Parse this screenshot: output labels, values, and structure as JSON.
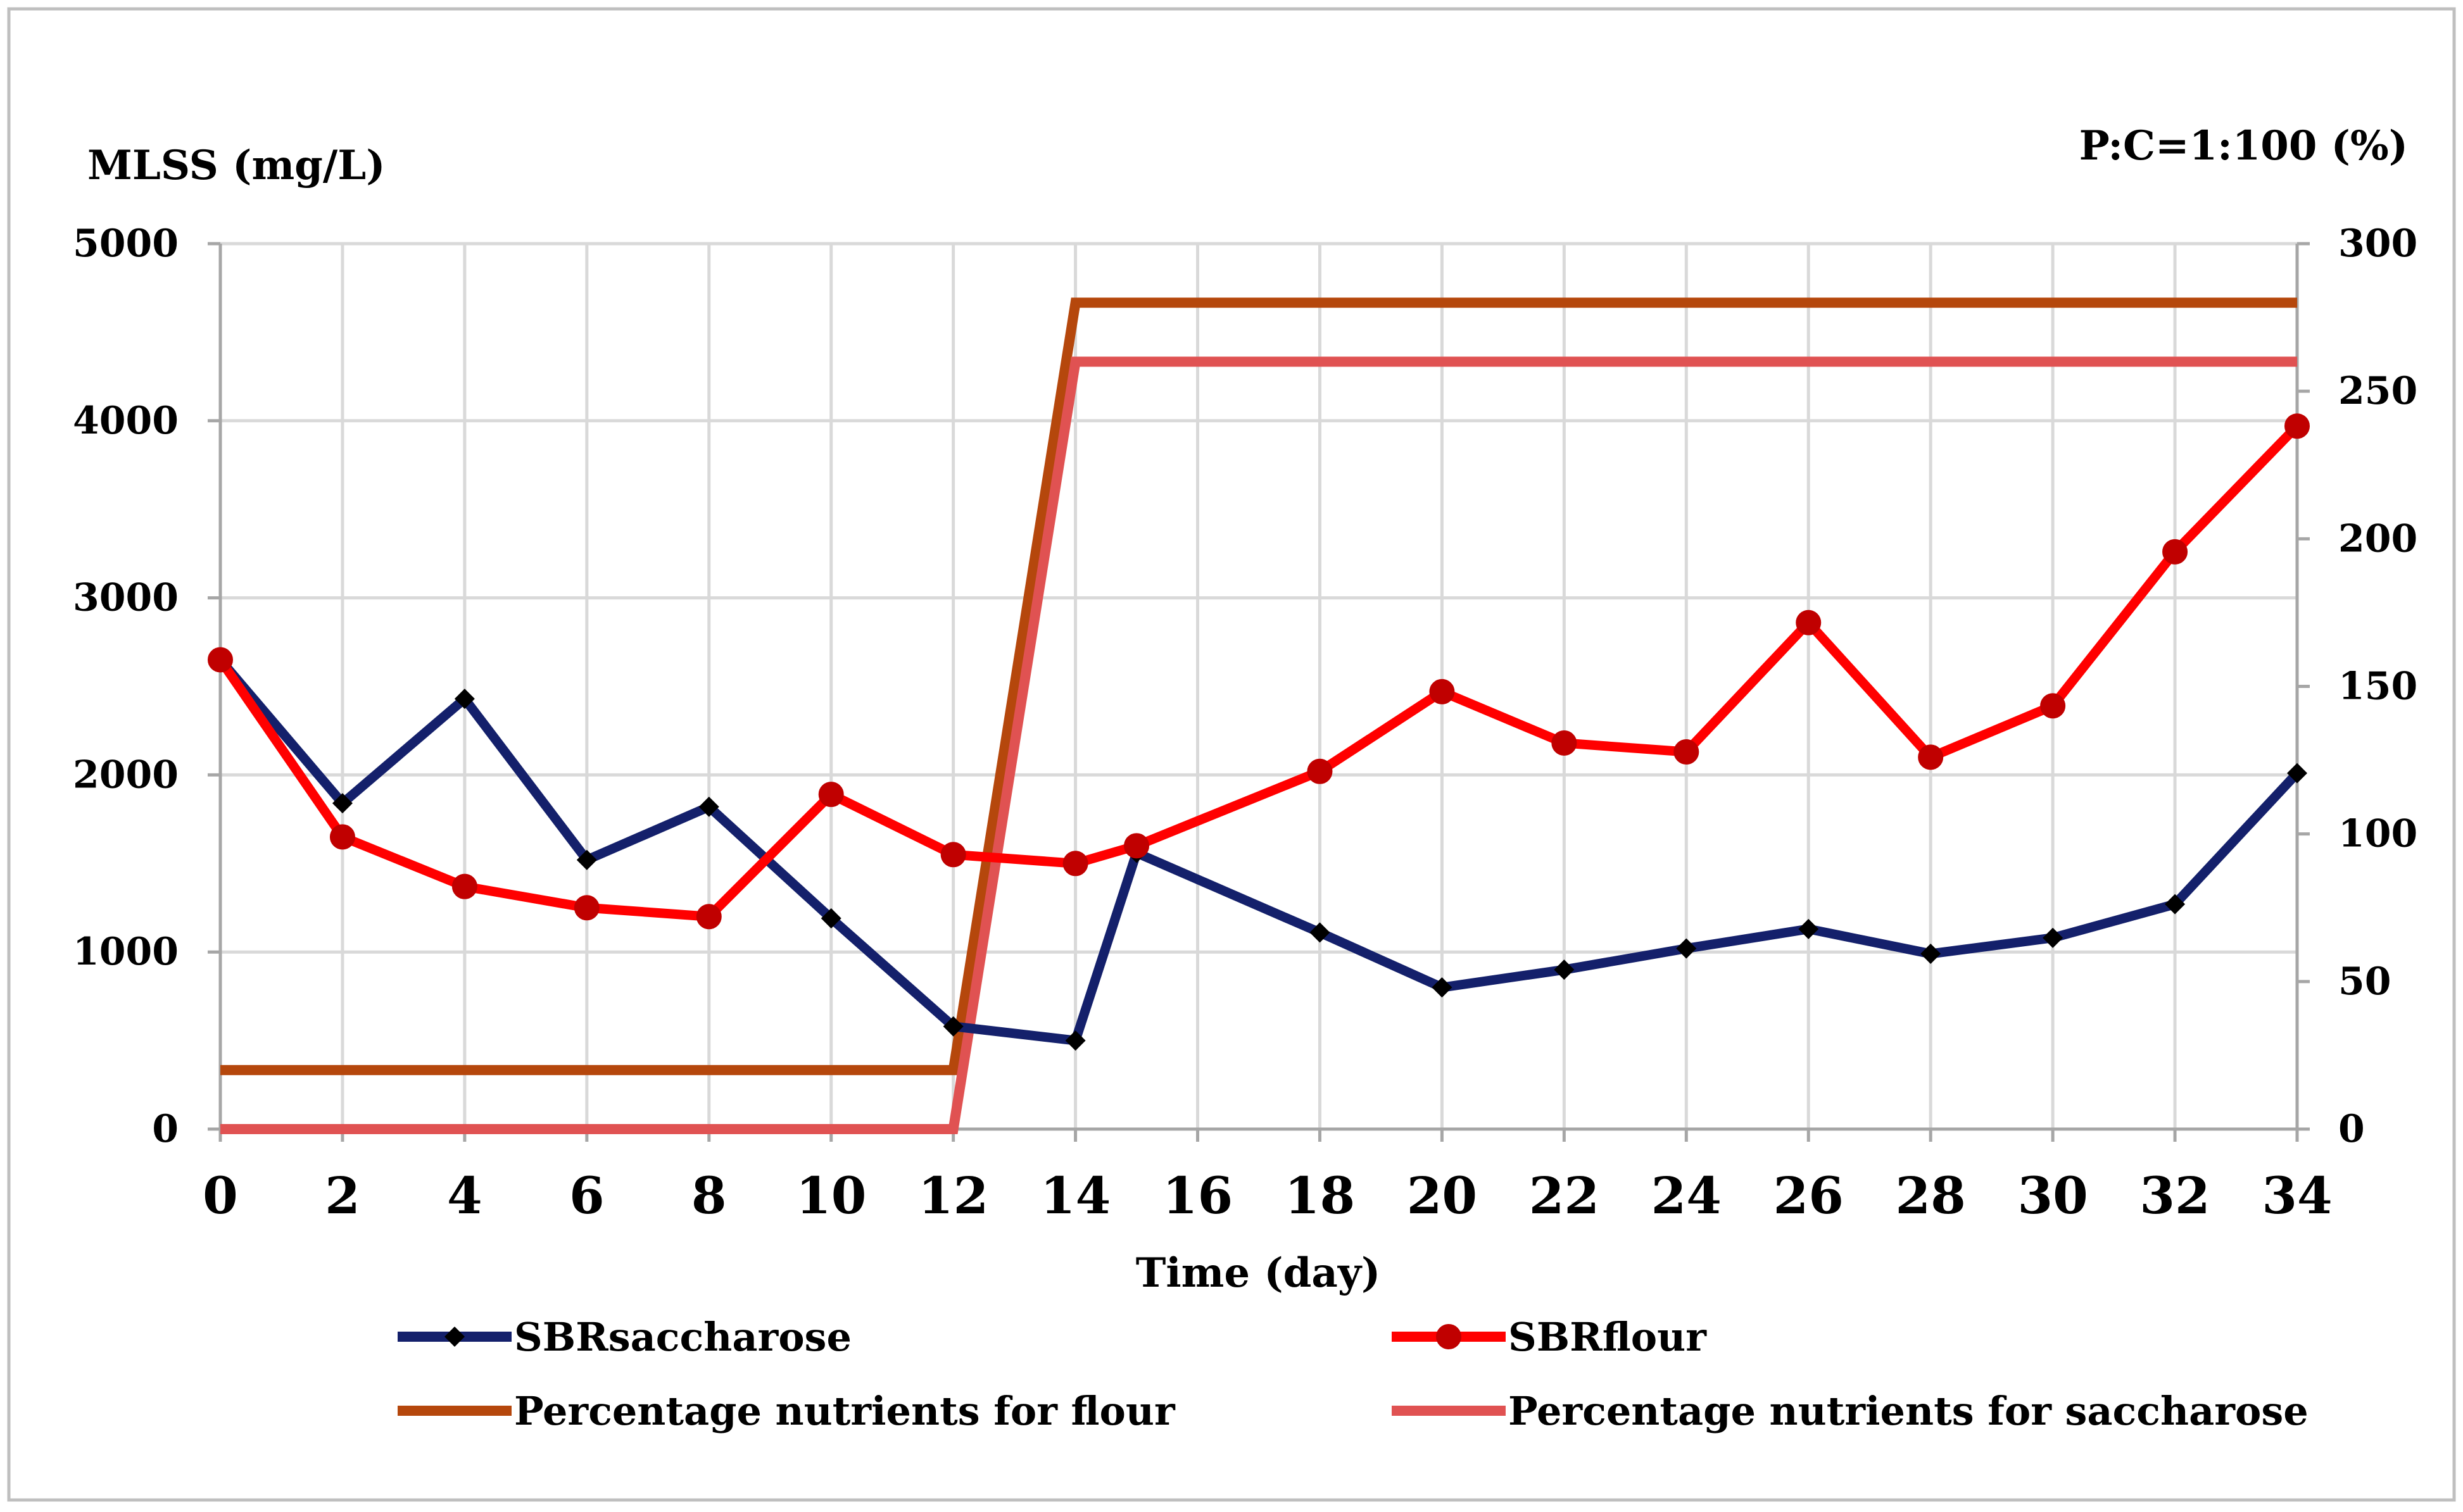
{
  "chart_data": {
    "type": "line",
    "xlabel": "Time (day)",
    "ylabel_left": "MLSS (mg/L)",
    "ylabel_right": "P:C=1:100 (%)",
    "xlim": [
      0,
      34
    ],
    "ylim_left": [
      0,
      5000
    ],
    "ylim_right": [
      0,
      300
    ],
    "x_ticks": [
      0,
      2,
      4,
      6,
      8,
      10,
      12,
      14,
      16,
      18,
      20,
      22,
      24,
      26,
      28,
      30,
      32,
      34
    ],
    "y_ticks_left": [
      0,
      1000,
      2000,
      3000,
      4000,
      5000
    ],
    "y_ticks_right": [
      0,
      50,
      100,
      150,
      200,
      250,
      300
    ],
    "grid": true,
    "legend_position": "bottom",
    "series": [
      {
        "name": "SBRsaccharose",
        "axis": "left",
        "color": "#14206b",
        "marker": "diamond",
        "x": [
          0,
          2,
          4,
          6,
          8,
          10,
          12,
          14,
          15,
          18,
          20,
          22,
          24,
          26,
          28,
          30,
          32,
          34
        ],
        "y": [
          2650,
          1840,
          2430,
          1520,
          1820,
          1190,
          580,
          500,
          1560,
          1110,
          800,
          900,
          1020,
          1130,
          990,
          1080,
          1270,
          2010
        ]
      },
      {
        "name": "SBRflour",
        "axis": "left",
        "color": "#ff0000",
        "marker": "circle",
        "x": [
          0,
          2,
          4,
          6,
          8,
          10,
          12,
          14,
          15,
          18,
          20,
          22,
          24,
          26,
          28,
          30,
          32,
          34
        ],
        "y": [
          2650,
          1650,
          1370,
          1250,
          1200,
          1890,
          1550,
          1500,
          1600,
          2020,
          2470,
          2180,
          2130,
          2860,
          2100,
          2390,
          3260,
          3970
        ]
      },
      {
        "name": "Percentage nutrients for flour",
        "axis": "right",
        "color": "#b5470c",
        "marker": "none",
        "x": [
          0,
          12,
          14,
          34
        ],
        "y": [
          20,
          20,
          280,
          280
        ]
      },
      {
        "name": "Percentage nutrients for saccharose",
        "axis": "right",
        "color": "#e05252",
        "marker": "none",
        "x": [
          0,
          12,
          14,
          34
        ],
        "y": [
          0,
          0,
          260,
          260
        ]
      }
    ]
  }
}
